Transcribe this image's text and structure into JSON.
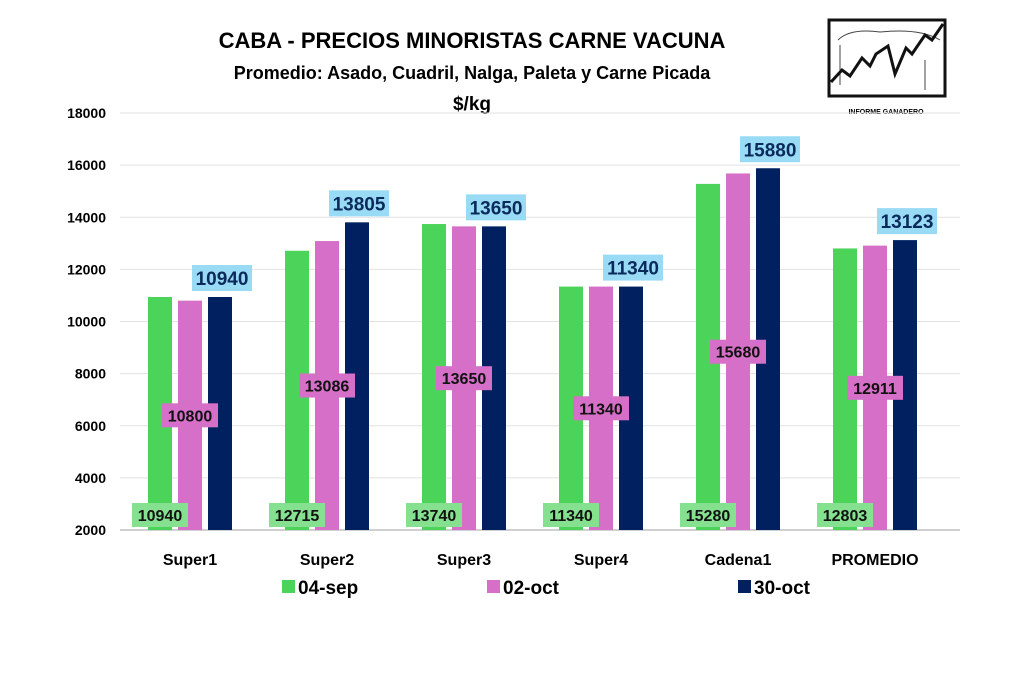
{
  "chart_data": {
    "type": "bar",
    "title": "CABA -  PRECIOS MINORISTAS CARNE VACUNA",
    "subtitle": "Promedio: Asado, Cuadril, Nalga, Paleta y Carne Picada",
    "unit": "$/kg",
    "logo_text": "INFORME GANADERO",
    "categories": [
      "Super1",
      "Super2",
      "Super3",
      "Super4",
      "Cadena1",
      "PROMEDIO"
    ],
    "ylim": [
      2000,
      18000
    ],
    "yticks": [
      2000,
      4000,
      6000,
      8000,
      10000,
      12000,
      14000,
      16000,
      18000
    ],
    "grid": true,
    "legend_position": "bottom",
    "series": [
      {
        "name": "04-sep",
        "color": "#4cd35a",
        "label_bg": "#85e08f",
        "values": [
          10940,
          12715,
          13740,
          11340,
          15280,
          12803
        ]
      },
      {
        "name": "02-oct",
        "color": "#d66fc8",
        "label_bg": "#d66fc8",
        "values": [
          10800,
          13086,
          13650,
          11340,
          15680,
          12911
        ]
      },
      {
        "name": "30-oct",
        "color": "#00205f",
        "label_bg": "#99dbf5",
        "values": [
          10940,
          13805,
          13650,
          11340,
          15880,
          13123
        ]
      }
    ]
  }
}
